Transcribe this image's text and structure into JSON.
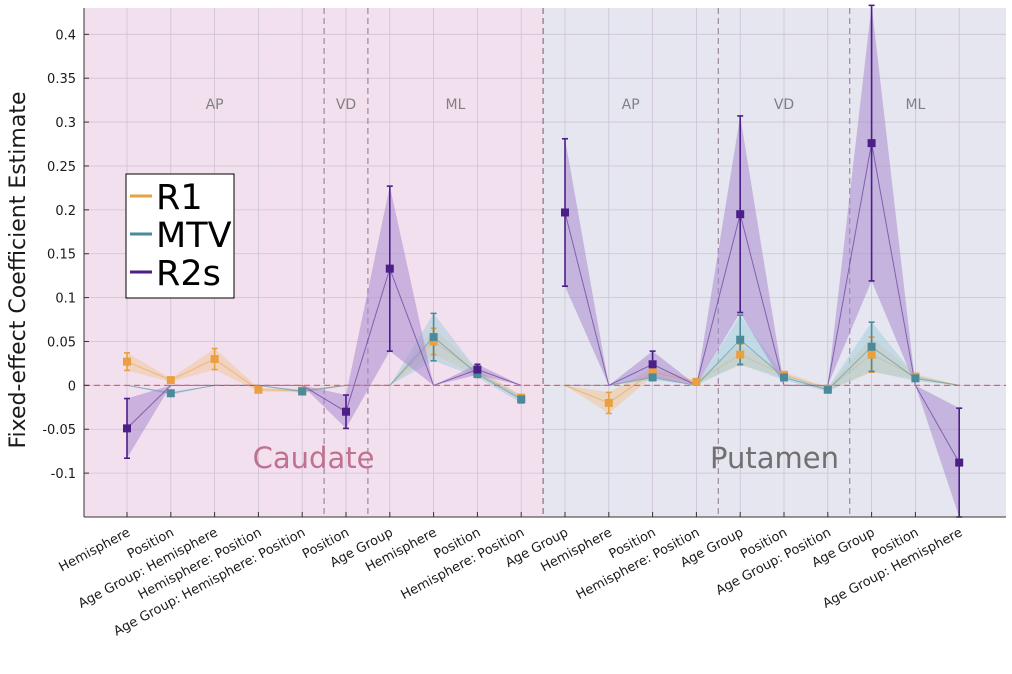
{
  "chart_data": {
    "type": "line",
    "title": "",
    "xlabel": "",
    "ylabel": "Fixed-effect Coefficient Estimate",
    "ylim": [
      -0.15,
      0.43
    ],
    "yticks": [
      -0.1,
      -0.05,
      0,
      0.05,
      0.1,
      0.15,
      0.2,
      0.25,
      0.3,
      0.35,
      0.4
    ],
    "ytick_labels": [
      "-0.1",
      "-0.05",
      "0",
      "0.05",
      "0.1",
      "0.15",
      "0.2",
      "0.25",
      "0.3",
      "0.35",
      "0.4"
    ],
    "grid": true,
    "legend_position": "left",
    "categories": [
      "Hemisphere",
      "Position",
      "Age Group: Hemisphere",
      "Hemisphere: Position",
      "Age Group: Hemisphere: Position",
      "Position",
      "Age Group",
      "Hemisphere",
      "Position",
      "Hemisphere: Position",
      "Age Group",
      "Hemisphere",
      "Position",
      "Hemisphere: Position",
      "Age Group",
      "Position",
      "Age Group: Position",
      "Age Group",
      "Position",
      "Age Group: Hemisphere"
    ],
    "regions": [
      {
        "name": "Caudate",
        "start": 0,
        "end": 9,
        "color": "#f3e0ef",
        "text_color": "#c07090"
      },
      {
        "name": "Putamen",
        "start": 10,
        "end": 19,
        "color": "#e5e6ef",
        "text_color": "#707070"
      }
    ],
    "sections": [
      {
        "label": "AP",
        "start": 0,
        "end": 4
      },
      {
        "label": "VD",
        "start": 5,
        "end": 5
      },
      {
        "label": "ML",
        "start": 6,
        "end": 9
      },
      {
        "label": "AP",
        "start": 10,
        "end": 13
      },
      {
        "label": "VD",
        "start": 14,
        "end": 16
      },
      {
        "label": "ML",
        "start": 17,
        "end": 19
      }
    ],
    "zero_line_color": "#e06070",
    "series": [
      {
        "name": "R1",
        "color": "#e8a040",
        "fill": "#f0c79a",
        "values": [
          0.027,
          0.006,
          0.03,
          -0.005,
          -0.006,
          null,
          null,
          0.05,
          0.015,
          -0.014,
          null,
          -0.02,
          0.015,
          0.004,
          0.035,
          0.012,
          -0.004,
          0.035,
          0.01,
          null
        ],
        "err": [
          0.01,
          0.002,
          0.012,
          0.002,
          0.002,
          null,
          null,
          0.015,
          0.004,
          0.003,
          null,
          0.012,
          0.005,
          0.002,
          0.012,
          0.003,
          0.002,
          0.02,
          0.003,
          null
        ]
      },
      {
        "name": "MTV",
        "color": "#4a8a9a",
        "fill": "#a6d0dc",
        "values": [
          null,
          -0.009,
          null,
          null,
          -0.007,
          null,
          null,
          0.055,
          0.013,
          -0.016,
          null,
          null,
          0.009,
          null,
          0.052,
          0.009,
          -0.005,
          0.044,
          0.008,
          null
        ],
        "err": [
          null,
          0.002,
          null,
          null,
          0.002,
          null,
          null,
          0.027,
          0.004,
          0.004,
          null,
          null,
          0.003,
          null,
          0.028,
          0.003,
          0.002,
          0.028,
          0.003,
          null
        ]
      },
      {
        "name": "R2s",
        "color": "#4b1e88",
        "fill": "#a98ad0",
        "values": [
          -0.049,
          null,
          null,
          null,
          null,
          -0.03,
          0.133,
          null,
          0.018,
          null,
          0.197,
          null,
          0.024,
          null,
          0.195,
          null,
          null,
          0.276,
          null,
          -0.088
        ],
        "err": [
          0.034,
          null,
          null,
          null,
          null,
          0.019,
          0.094,
          null,
          0.006,
          null,
          0.084,
          null,
          0.015,
          null,
          0.112,
          null,
          null,
          0.157,
          null,
          0.062
        ]
      }
    ]
  }
}
